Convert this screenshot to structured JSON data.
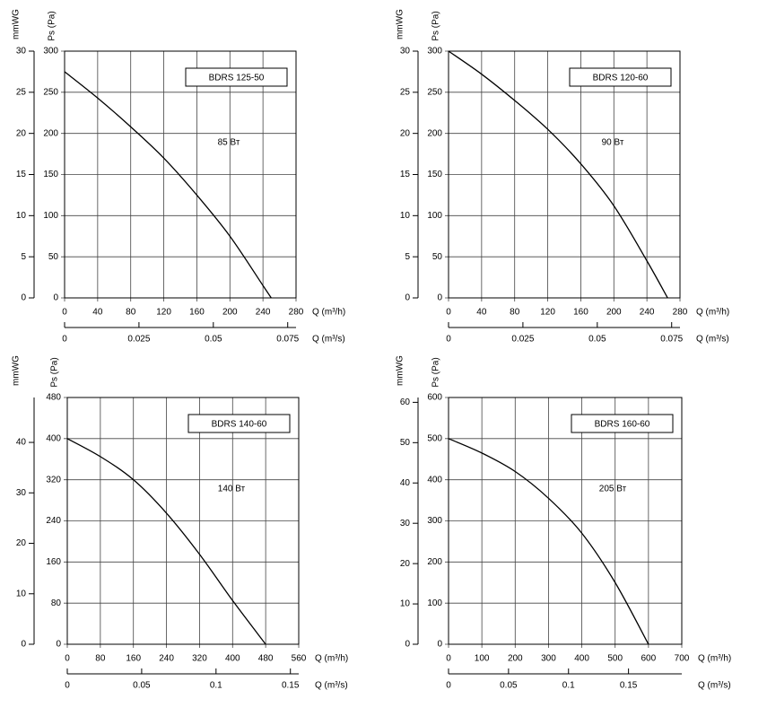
{
  "chart_data": [
    {
      "type": "line",
      "title": "BDRS 125-50",
      "annotation": "85 Вт",
      "xlabel": "Q (m³/h)",
      "x2label": "Q (m³/s)",
      "ylabel": "Ps (Pa)",
      "y2label": "mmWG",
      "x": [
        0,
        40,
        80,
        120,
        160,
        200,
        240,
        250
      ],
      "values": [
        275,
        243,
        208,
        170,
        125,
        75,
        15,
        0
      ],
      "color": "#000000",
      "xlim": [
        0,
        280
      ],
      "xticks": [
        0,
        40,
        80,
        120,
        160,
        200,
        240,
        280
      ],
      "x2lim": [
        0,
        0.0778
      ],
      "x2ticks": [
        0,
        0.025,
        0.05,
        0.075
      ],
      "ylim": [
        0,
        300
      ],
      "yticks": [
        0,
        50,
        100,
        150,
        200,
        250,
        300
      ],
      "y2lim": [
        0,
        30
      ],
      "y2ticks": [
        0,
        5,
        10,
        15,
        20,
        25,
        30
      ],
      "grid": true
    },
    {
      "type": "line",
      "title": "BDRS 120-60",
      "annotation": "90 Вт",
      "xlabel": "Q (m³/h)",
      "x2label": "Q (m³/s)",
      "ylabel": "Ps (Pa)",
      "y2label": "mmWG",
      "x": [
        0,
        40,
        80,
        120,
        160,
        200,
        240,
        265
      ],
      "values": [
        300,
        272,
        240,
        205,
        163,
        112,
        45,
        0
      ],
      "color": "#000000",
      "xlim": [
        0,
        280
      ],
      "xticks": [
        0,
        40,
        80,
        120,
        160,
        200,
        240,
        280
      ],
      "x2lim": [
        0,
        0.0778
      ],
      "x2ticks": [
        0,
        0.025,
        0.05,
        0.075
      ],
      "ylim": [
        0,
        300
      ],
      "yticks": [
        0,
        50,
        100,
        150,
        200,
        250,
        300
      ],
      "y2lim": [
        0,
        30
      ],
      "y2ticks": [
        0,
        5,
        10,
        15,
        20,
        25,
        30
      ],
      "grid": true
    },
    {
      "type": "line",
      "title": "BDRS 140-60",
      "annotation": "140 Вт",
      "xlabel": "Q (m³/h)",
      "x2label": "Q (m³/s)",
      "ylabel": "Ps (Pa)",
      "y2label": "mmWG",
      "x": [
        0,
        80,
        160,
        240,
        320,
        400,
        480
      ],
      "values": [
        400,
        365,
        320,
        255,
        175,
        85,
        0
      ],
      "color": "#000000",
      "xlim": [
        0,
        560
      ],
      "xticks": [
        0,
        80,
        160,
        240,
        320,
        400,
        480,
        560
      ],
      "x2lim": [
        0,
        0.1556
      ],
      "x2ticks": [
        0,
        0.05,
        0.1,
        0.15
      ],
      "ylim": [
        0,
        480
      ],
      "yticks": [
        0,
        80,
        160,
        240,
        320,
        400,
        480
      ],
      "y2lim": [
        0,
        48.9
      ],
      "y2ticks": [
        0,
        10,
        20,
        30,
        40
      ],
      "grid": true
    },
    {
      "type": "line",
      "title": "BDRS 160-60",
      "annotation": "205 Вт",
      "xlabel": "Q (m³/h)",
      "x2label": "Q (m³/s)",
      "ylabel": "Ps (Pa)",
      "y2label": "mmWG",
      "x": [
        0,
        100,
        200,
        300,
        400,
        500,
        600
      ],
      "values": [
        500,
        465,
        420,
        355,
        270,
        150,
        0
      ],
      "color": "#000000",
      "xlim": [
        0,
        700
      ],
      "xticks": [
        0,
        100,
        200,
        300,
        400,
        500,
        600,
        700
      ],
      "x2lim": [
        0,
        0.1944
      ],
      "x2ticks": [
        0,
        0.05,
        0.1,
        0.15
      ],
      "ylim": [
        0,
        600
      ],
      "yticks": [
        0,
        100,
        200,
        300,
        400,
        500,
        600
      ],
      "y2lim": [
        0,
        61.2
      ],
      "y2ticks": [
        0,
        10,
        20,
        30,
        40,
        50,
        60
      ],
      "grid": true
    }
  ]
}
